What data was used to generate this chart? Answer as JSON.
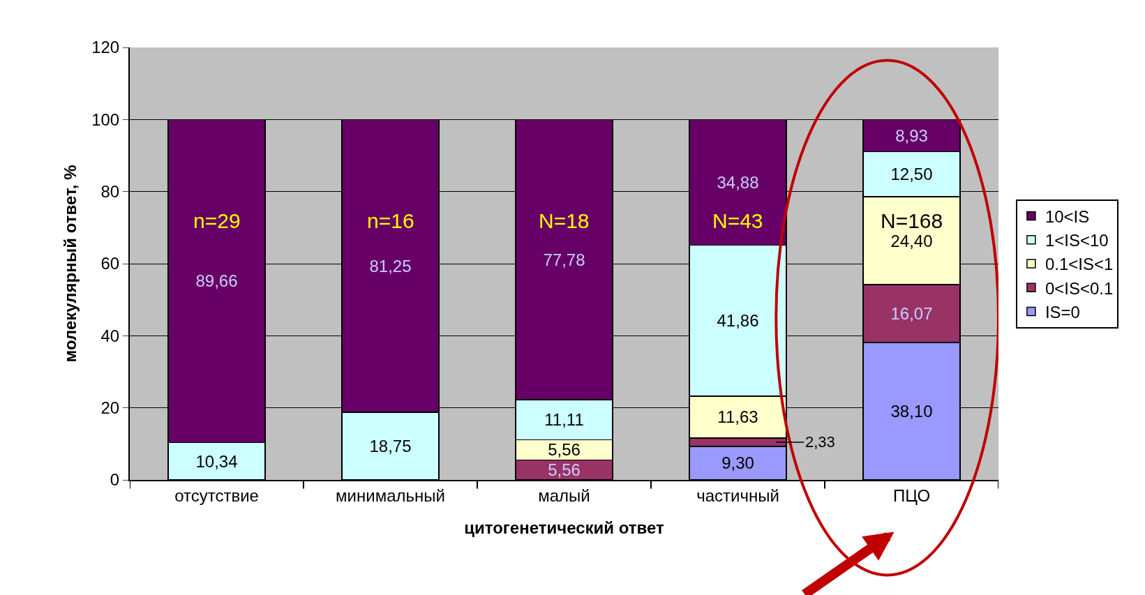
{
  "chart_data": {
    "type": "bar",
    "stacked": true,
    "xlabel": "цитогенетический ответ",
    "ylabel": "молекулярный ответ, %",
    "categories": [
      "отсутствие",
      "минимальный",
      "малый",
      "частичный",
      "ПЦО"
    ],
    "series": [
      {
        "name": "IS=0",
        "color": "#9999ff",
        "values": [
          null,
          null,
          null,
          9.3,
          38.1
        ],
        "value_labels": [
          null,
          null,
          null,
          "9,30",
          "38,10"
        ]
      },
      {
        "name": "0<IS<0.1",
        "color": "#993366",
        "values": [
          null,
          null,
          5.56,
          2.33,
          16.07
        ],
        "value_labels": [
          null,
          null,
          "5,56",
          "2,33",
          "16,07"
        ]
      },
      {
        "name": "0.1<IS<1",
        "color": "#ffffcc",
        "values": [
          null,
          null,
          5.56,
          11.63,
          24.4
        ],
        "value_labels": [
          null,
          null,
          "5,56",
          "11,63",
          "24,40"
        ]
      },
      {
        "name": "1<IS<10",
        "color": "#ccffff",
        "values": [
          10.34,
          18.75,
          11.11,
          41.86,
          12.5
        ],
        "value_labels": [
          "10,34",
          "18,75",
          "11,11",
          "41,86",
          "12,50"
        ]
      },
      {
        "name": "10<IS",
        "color": "#660066",
        "values": [
          89.66,
          81.25,
          77.78,
          34.88,
          8.93
        ],
        "value_labels": [
          "89,66",
          "81,25",
          "77,78",
          "34,88",
          "8,93"
        ]
      }
    ],
    "ylim": [
      0,
      120
    ],
    "yticks": [
      0,
      20,
      40,
      60,
      80,
      100,
      120
    ],
    "grid": "y",
    "legend": "right",
    "annotations": [
      "n=29",
      "n=16",
      "N=18",
      "N=43",
      "N=168"
    ]
  }
}
